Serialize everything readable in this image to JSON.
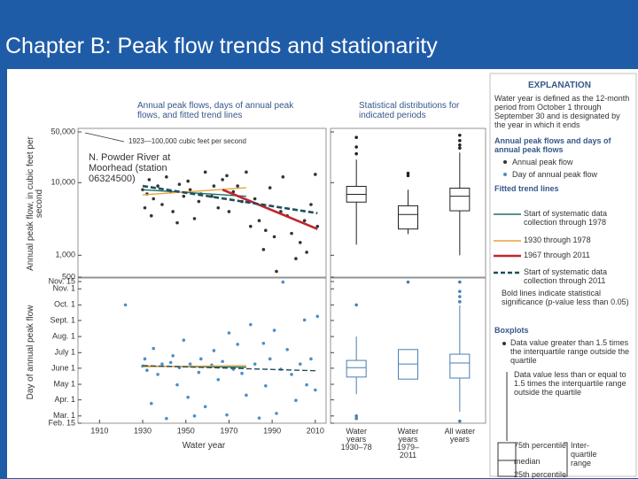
{
  "title": "Chapter B: Peak flow trends and stationarity",
  "chart_data": [
    {
      "type": "scatter",
      "title": "Annual peak flows, days of annual peak flows, and fitted trend lines",
      "ylabel": "Annual peak flow, in cubic feet per second",
      "annotations": [
        "1923—100,000 cubic feet per second",
        "N. Powder River at Moorhead (station 06324500)"
      ],
      "log_y": true,
      "xlim": [
        1900,
        2015
      ],
      "ylim": [
        500,
        50000
      ],
      "yticks": [
        {
          "value": 50000,
          "label": "50,000"
        },
        {
          "value": 10000,
          "label": "10,000"
        },
        {
          "value": 1000,
          "label": "1,000"
        },
        500
      ],
      "series": [
        {
          "name": "Annual peak flow",
          "color": "#333333",
          "x": [
            1930,
            1931,
            1932,
            1933,
            1934,
            1935,
            1937,
            1939,
            1941,
            1943,
            1944,
            1946,
            1947,
            1949,
            1951,
            1952,
            1954,
            1956,
            1957,
            1959,
            1962,
            1963,
            1965,
            1967,
            1969,
            1970,
            1972,
            1974,
            1976,
            1978,
            1980,
            1982,
            1984,
            1986,
            1987,
            1989,
            1991,
            1992,
            1994,
            1995,
            1997,
            1999,
            2001,
            2003,
            2005,
            2006,
            2008,
            2010,
            2011
          ],
          "values": [
            8000,
            4500,
            7000,
            11000,
            3500,
            6000,
            9000,
            5000,
            12000,
            7500,
            4000,
            2800,
            9500,
            6500,
            10500,
            8000,
            3200,
            5500,
            7000,
            14000,
            6500,
            9000,
            4500,
            11000,
            12500,
            4000,
            7500,
            9000,
            5500,
            14000,
            2500,
            6000,
            3000,
            1200,
            2200,
            8500,
            1800,
            600,
            4000,
            12000,
            3500,
            2000,
            900,
            1500,
            3000,
            1100,
            5000,
            13000,
            2500
          ]
        }
      ],
      "trend_lines": [
        {
          "name": "Start of systematic data collection through 1978",
          "color": "#1d6e6e",
          "x": [
            1930,
            1978
          ],
          "values": [
            8000,
            6500
          ]
        },
        {
          "name": "1930 through 1978",
          "color": "#e8a23a",
          "x": [
            1930,
            1978
          ],
          "values": [
            6800,
            8500
          ]
        },
        {
          "name": "1967 through 2011",
          "color": "#c0272d",
          "significant": true,
          "x": [
            1967,
            2011
          ],
          "values": [
            8000,
            2300
          ]
        },
        {
          "name": "Start of systematic data collection through 2011",
          "color": "#1f4e5a",
          "dashed": true,
          "significant": true,
          "x": [
            1930,
            2011
          ],
          "values": [
            9000,
            3800
          ]
        }
      ]
    },
    {
      "type": "box",
      "title": "Statistical distributions for indicated periods",
      "color": "#222222",
      "log_y": true,
      "ylim": [
        500,
        50000
      ],
      "yticks": [
        50000,
        10000,
        1000,
        500
      ],
      "boxes": [
        {
          "low": 1400,
          "q1": 5400,
          "median": 6900,
          "q3": 8900,
          "high": 20800,
          "outliers": [
            42000,
            31000,
            25000
          ]
        },
        {
          "low": 1960,
          "q1": 2300,
          "median": 3650,
          "q3": 4800,
          "high": 8000,
          "outliers": [
            12500,
            13500
          ]
        },
        {
          "low": 1000,
          "q1": 4100,
          "median": 6500,
          "q3": 8400,
          "high": 26000,
          "outliers": [
            45000,
            38000,
            33000,
            30000
          ]
        }
      ]
    },
    {
      "type": "scatter",
      "ylabel": "Day of annual peak flow",
      "xlabel": "Water year",
      "xlim": [
        1900,
        2015
      ],
      "ylim": [
        46,
        319
      ],
      "xticks": [
        1910,
        1930,
        1950,
        1970,
        1990,
        2010
      ],
      "yticks": [
        {
          "value": 319,
          "label": "Nov. 15"
        },
        {
          "value": 305,
          "label": "Nov. 1"
        },
        {
          "value": 274,
          "label": "Oct. 1"
        },
        {
          "value": 244,
          "label": "Sept. 1"
        },
        {
          "value": 213,
          "label": "Aug. 1"
        },
        {
          "value": 182,
          "label": "July 1"
        },
        {
          "value": 152,
          "label": "June 1"
        },
        {
          "value": 121,
          "label": "May 1"
        },
        {
          "value": 91,
          "label": "Apr. 1"
        },
        {
          "value": 60,
          "label": "Mar. 1"
        },
        {
          "value": 46,
          "label": "Feb. 15"
        }
      ],
      "series": [
        {
          "name": "Day of annual peak flow",
          "color": "#4a90c8",
          "x": [
            1922,
            1930,
            1931,
            1932,
            1934,
            1935,
            1937,
            1939,
            1941,
            1943,
            1944,
            1946,
            1947,
            1949,
            1951,
            1952,
            1954,
            1956,
            1957,
            1959,
            1962,
            1963,
            1965,
            1967,
            1969,
            1970,
            1972,
            1974,
            1976,
            1978,
            1980,
            1982,
            1984,
            1986,
            1987,
            1989,
            1991,
            1992,
            1994,
            1995,
            1997,
            1999,
            2001,
            2003,
            2005,
            2006,
            2008,
            2010,
            2011
          ],
          "values": [
            274,
            156,
            170,
            148,
            84,
            190,
            140,
            160,
            55,
            163,
            176,
            120,
            153,
            206,
            96,
            160,
            60,
            144,
            170,
            78,
            158,
            186,
            130,
            165,
            62,
            220,
            150,
            198,
            142,
            100,
            236,
            160,
            56,
            200,
            118,
            170,
            225,
            65,
            150,
            318,
            188,
            140,
            90,
            160,
            245,
            120,
            170,
            110,
            252
          ]
        }
      ],
      "trend_lines": [
        {
          "color": "#1d6e6e",
          "x": [
            1930,
            1978
          ],
          "values": [
            156,
            154
          ]
        },
        {
          "color": "#e8a23a",
          "x": [
            1930,
            1978
          ],
          "values": [
            155,
            157
          ]
        },
        {
          "color": "#1f4e5a",
          "dashed": true,
          "x": [
            1930,
            2011
          ],
          "values": [
            157,
            147
          ]
        }
      ]
    },
    {
      "type": "box",
      "color": "#4a7fb0",
      "ylim": [
        46,
        319
      ],
      "yticks": [
        319,
        305,
        274,
        244,
        213,
        182,
        152,
        121,
        91,
        60,
        46
      ],
      "categories": [
        "Water years 1930–78",
        "Water years 1979–2011",
        "All water years"
      ],
      "boxes": [
        {
          "low": 102,
          "q1": 135,
          "median": 153,
          "q3": 167,
          "high": 213,
          "outliers": [
            274,
            60,
            55
          ]
        },
        {
          "low": 131,
          "q1": 131,
          "median": 160,
          "q3": 188,
          "high": 188,
          "outliers": [
            318
          ]
        },
        {
          "low": 68,
          "q1": 133,
          "median": 162,
          "q3": 179,
          "high": 273,
          "outliers": [
            318,
            300,
            290,
            280,
            50
          ]
        }
      ]
    }
  ],
  "explanation": {
    "title": "EXPLANATION",
    "note": "Water year is defined as the 12-month period from October 1 through September 30 and is designated by the year in which it ends",
    "points_heading": "Annual peak flows and days of annual peak flows",
    "trends_heading": "Fitted trend lines",
    "significance_note": "Bold lines indicate statistical significance (p-value less than 0.05)",
    "boxplots_heading": "Boxplots",
    "outlier_note": "Data value greater than 1.5 times the interquartile range outside the quartile",
    "whisker_note": "Data value less than or equal to 1.5 times the interquartile range outside the quartile",
    "box_labels": [
      "75th percentile",
      "median",
      "25th percentile"
    ],
    "iqr_label": "Inter-quartile range"
  }
}
